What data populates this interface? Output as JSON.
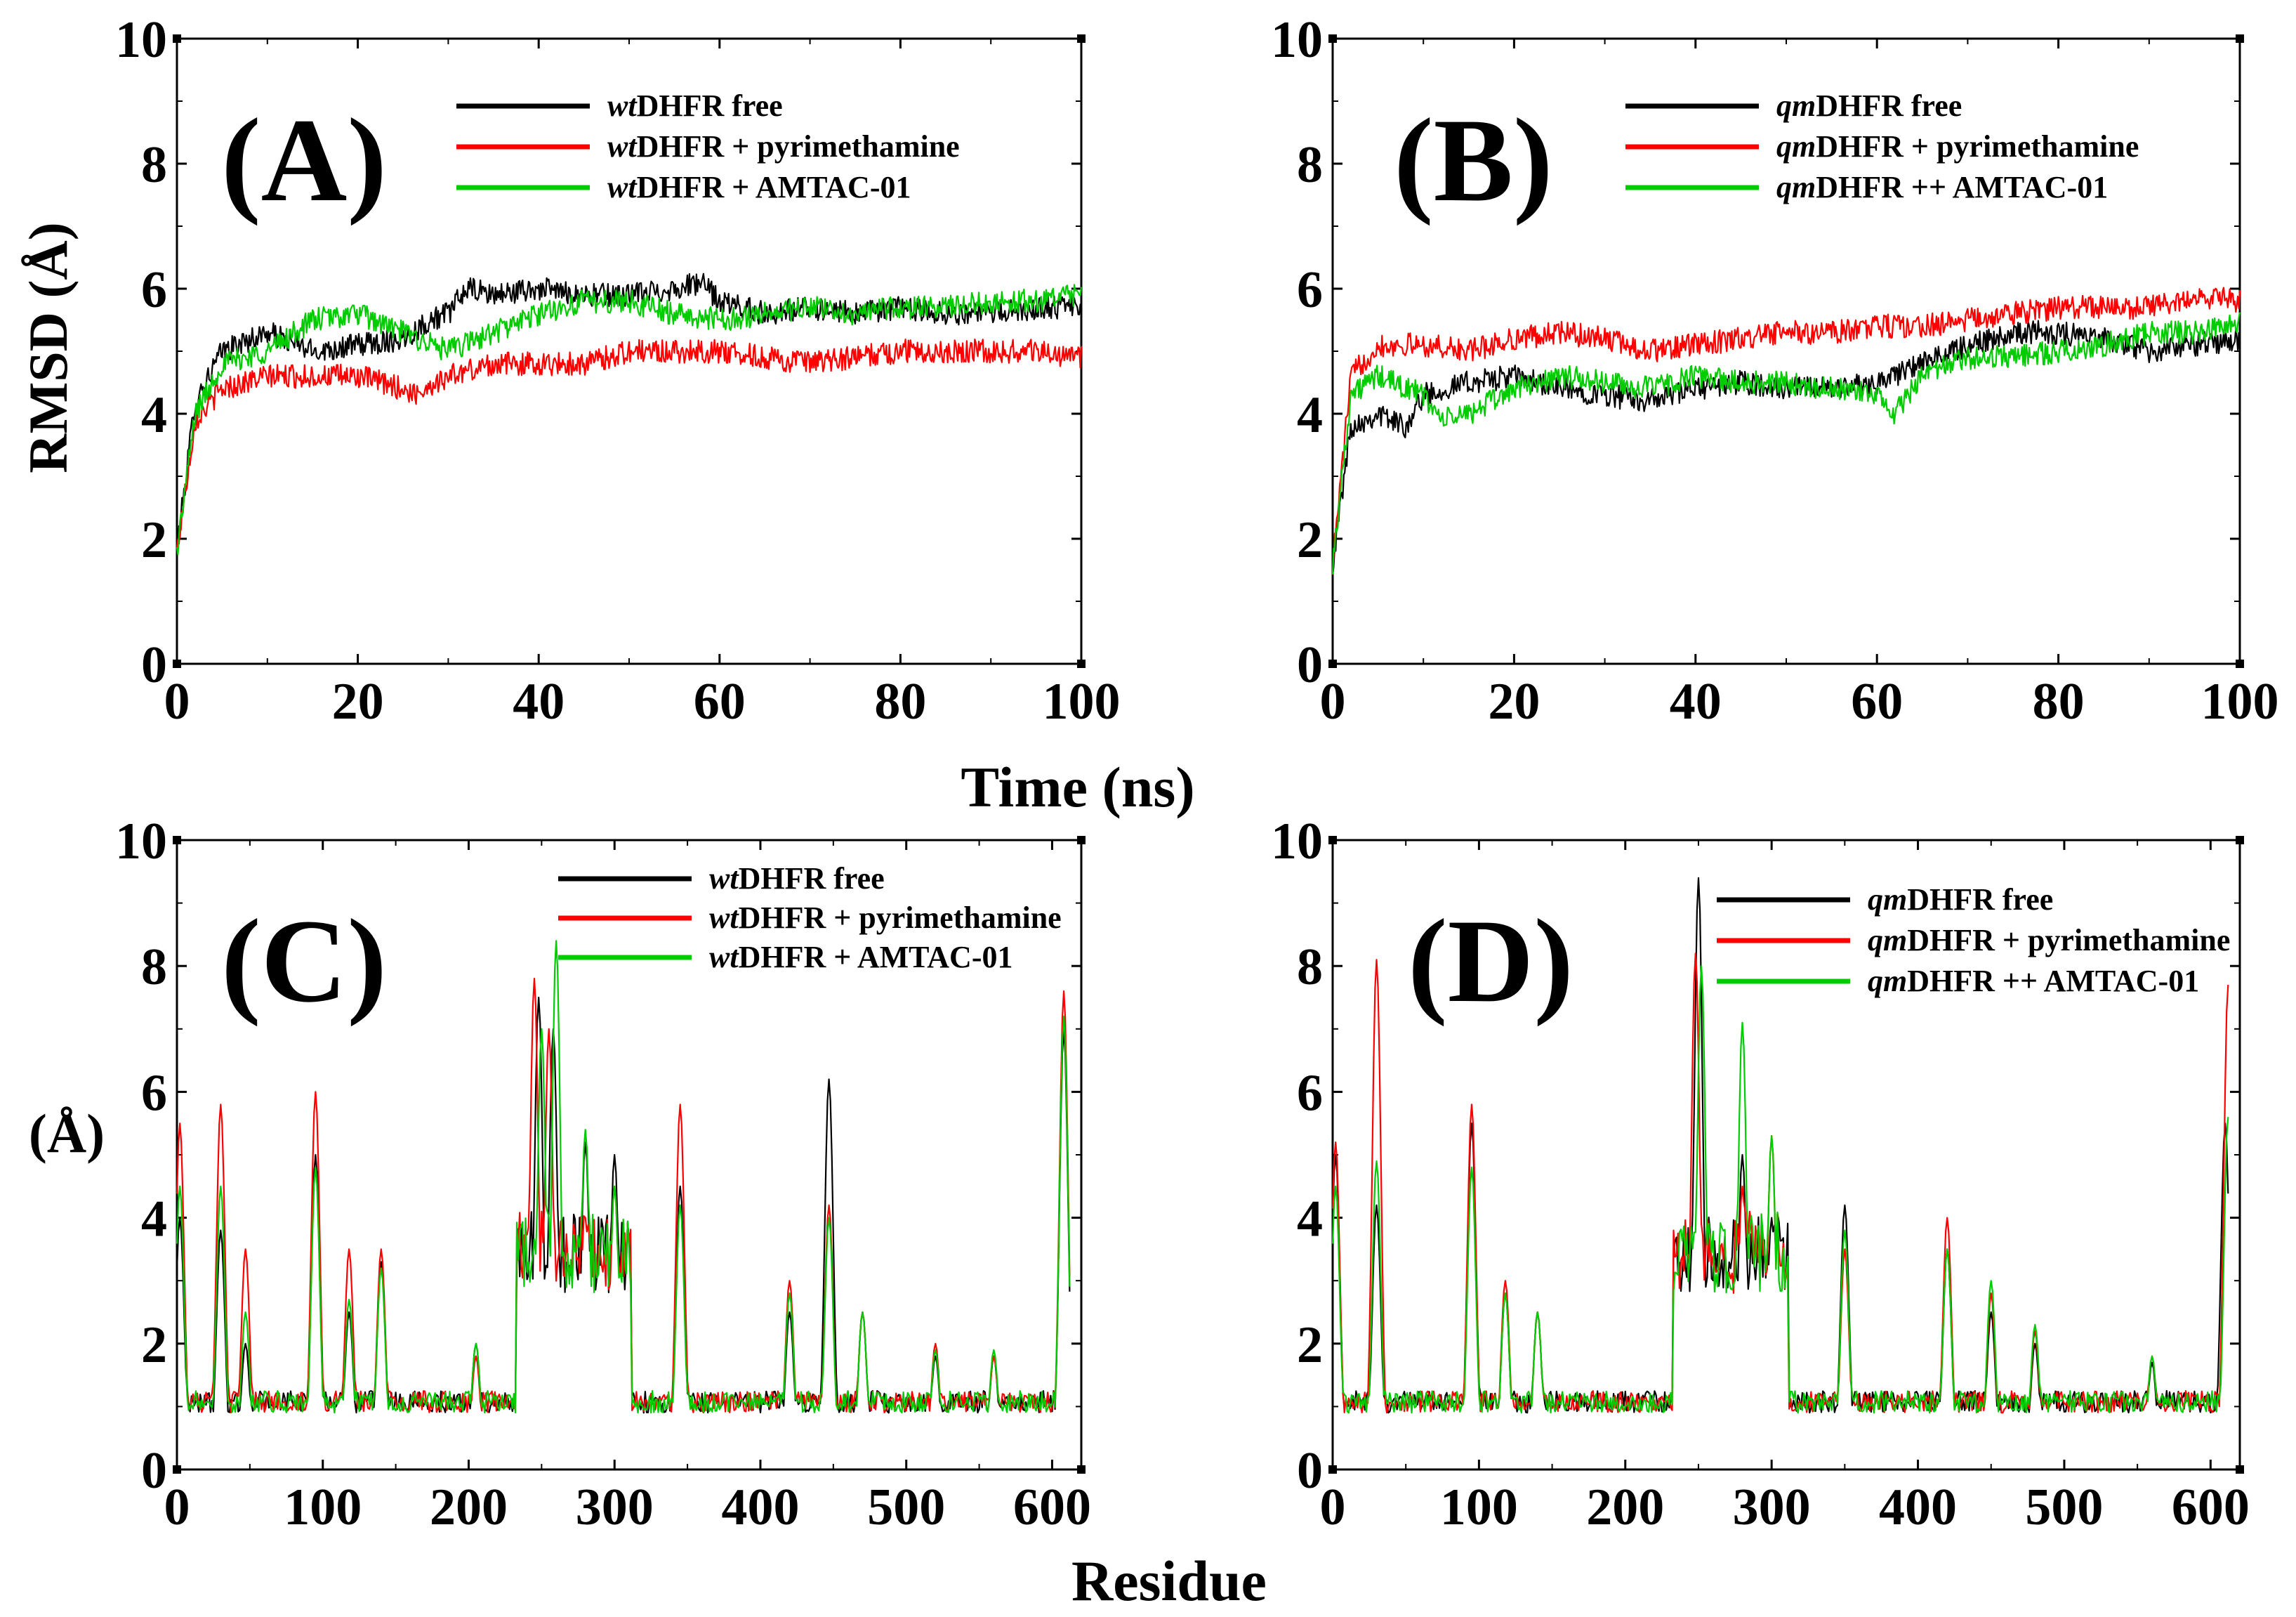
{
  "colors": {
    "free": "#000000",
    "pyrimethamine": "#ff0000",
    "amtac": "#00cc00"
  },
  "common": {
    "time_label": "Time (ns)",
    "residue_label": "Residue"
  },
  "chart_data": [
    {
      "panel": "(A)",
      "type": "line",
      "xlim": [
        0,
        100
      ],
      "ylim": [
        0,
        10
      ],
      "ylabel": "RMSD (Å)",
      "xlabel": "Time (ns)",
      "xticks": [
        "0",
        "20",
        "40",
        "60",
        "80",
        "100"
      ],
      "yticks": [
        "0",
        "2",
        "4",
        "6",
        "8",
        "10"
      ],
      "legend": [
        {
          "italic": "wt",
          "rest": "DHFR free",
          "key": "free"
        },
        {
          "italic": "wt",
          "rest": "DHFR + pyrimethamine",
          "key": "pyrimethamine"
        },
        {
          "italic": "wt",
          "rest": "DHFR + AMTAC-01",
          "key": "amtac"
        }
      ],
      "series": [
        {
          "key": "free",
          "x": [
            0,
            2,
            5,
            10,
            15,
            20,
            25,
            28,
            30,
            32,
            35,
            40,
            45,
            50,
            55,
            58,
            60,
            65,
            70,
            75,
            80,
            85,
            90,
            95,
            100
          ],
          "y": [
            1.8,
            4.2,
            5.0,
            5.3,
            5.0,
            5.1,
            5.2,
            5.5,
            5.6,
            6.0,
            5.9,
            6.0,
            5.9,
            5.9,
            6.0,
            6.1,
            5.8,
            5.6,
            5.7,
            5.6,
            5.7,
            5.6,
            5.6,
            5.7,
            5.7
          ]
        },
        {
          "key": "pyrimethamine",
          "x": [
            0,
            2,
            5,
            10,
            15,
            20,
            25,
            26,
            30,
            35,
            40,
            45,
            50,
            55,
            60,
            65,
            70,
            75,
            80,
            85,
            90,
            95,
            100
          ],
          "y": [
            1.8,
            3.9,
            4.4,
            4.6,
            4.6,
            4.6,
            4.4,
            4.3,
            4.6,
            4.8,
            4.8,
            4.8,
            5.0,
            5.0,
            5.0,
            4.9,
            4.8,
            4.9,
            5.0,
            5.0,
            5.0,
            5.0,
            4.9
          ]
        },
        {
          "key": "amtac",
          "x": [
            0,
            2,
            5,
            10,
            15,
            20,
            25,
            30,
            35,
            40,
            45,
            50,
            55,
            60,
            65,
            70,
            75,
            80,
            85,
            90,
            95,
            100
          ],
          "y": [
            1.8,
            4.0,
            4.8,
            5.0,
            5.5,
            5.6,
            5.3,
            5.0,
            5.3,
            5.6,
            5.8,
            5.8,
            5.6,
            5.5,
            5.6,
            5.7,
            5.6,
            5.7,
            5.7,
            5.8,
            5.8,
            5.9
          ]
        }
      ]
    },
    {
      "panel": "(B)",
      "type": "line",
      "xlim": [
        0,
        100
      ],
      "ylim": [
        0,
        10
      ],
      "ylabel": "",
      "xlabel": "Time (ns)",
      "xticks": [
        "0",
        "20",
        "40",
        "60",
        "80",
        "100"
      ],
      "yticks": [
        "0",
        "2",
        "4",
        "6",
        "8",
        "10"
      ],
      "legend": [
        {
          "italic": "qm",
          "rest": "DHFR free",
          "key": "free"
        },
        {
          "italic": "qm",
          "rest": "DHFR + pyrimethamine",
          "key": "pyrimethamine"
        },
        {
          "italic": "qm",
          "rest": "DHFR ++ AMTAC-01",
          "key": "amtac"
        }
      ],
      "series": [
        {
          "key": "free",
          "x": [
            0,
            2,
            5,
            8,
            10,
            15,
            20,
            25,
            30,
            35,
            40,
            45,
            50,
            55,
            60,
            65,
            70,
            75,
            80,
            85,
            90,
            95,
            100
          ],
          "y": [
            1.6,
            3.8,
            4.0,
            3.8,
            4.3,
            4.5,
            4.6,
            4.4,
            4.3,
            4.2,
            4.4,
            4.5,
            4.4,
            4.4,
            4.5,
            4.8,
            5.1,
            5.3,
            5.3,
            5.2,
            5.0,
            5.1,
            5.2
          ]
        },
        {
          "key": "pyrimethamine",
          "x": [
            0,
            2,
            5,
            10,
            15,
            20,
            25,
            30,
            35,
            40,
            45,
            50,
            55,
            60,
            65,
            70,
            75,
            80,
            85,
            90,
            95,
            100
          ],
          "y": [
            1.6,
            4.6,
            5.1,
            5.1,
            5.0,
            5.2,
            5.3,
            5.2,
            5.0,
            5.1,
            5.2,
            5.3,
            5.3,
            5.4,
            5.4,
            5.5,
            5.6,
            5.7,
            5.7,
            5.7,
            5.9,
            5.8
          ]
        },
        {
          "key": "amtac",
          "x": [
            0,
            2,
            5,
            10,
            12,
            15,
            20,
            25,
            30,
            35,
            40,
            45,
            50,
            55,
            60,
            62,
            65,
            70,
            75,
            80,
            85,
            90,
            95,
            100
          ],
          "y": [
            1.6,
            4.3,
            4.6,
            4.3,
            3.9,
            4.0,
            4.4,
            4.6,
            4.5,
            4.4,
            4.6,
            4.5,
            4.5,
            4.4,
            4.3,
            4.0,
            4.6,
            4.9,
            4.9,
            5.0,
            5.1,
            5.3,
            5.3,
            5.5
          ]
        }
      ]
    },
    {
      "panel": "(C)",
      "type": "line",
      "xlim": [
        0,
        620
      ],
      "ylim": [
        0,
        10
      ],
      "ylabel": "(Å)",
      "xlabel": "Residue",
      "xticks": [
        "0",
        "100",
        "200",
        "300",
        "400",
        "500",
        "600"
      ],
      "yticks": [
        "0",
        "2",
        "4",
        "6",
        "8",
        "10"
      ],
      "legend": [
        {
          "italic": "wt",
          "rest": "DHFR free",
          "key": "free"
        },
        {
          "italic": "wt",
          "rest": "DHFR + pyrimethamine",
          "key": "pyrimethamine"
        },
        {
          "italic": "wt",
          "rest": "DHFR + AMTAC-01",
          "key": "amtac"
        }
      ],
      "peaks": {
        "free": [
          [
            2,
            4.0
          ],
          [
            30,
            3.8
          ],
          [
            47,
            2.0
          ],
          [
            95,
            5.0
          ],
          [
            118,
            2.5
          ],
          [
            140,
            3.3
          ],
          [
            205,
            2.0
          ],
          [
            248,
            7.5
          ],
          [
            258,
            7.0
          ],
          [
            280,
            5.2
          ],
          [
            300,
            5.0
          ],
          [
            345,
            4.5
          ],
          [
            420,
            2.5
          ],
          [
            447,
            6.2
          ],
          [
            470,
            2.5
          ],
          [
            520,
            1.8
          ],
          [
            560,
            1.8
          ],
          [
            608,
            7.0
          ]
        ],
        "pyrimethamine": [
          [
            2,
            5.5
          ],
          [
            30,
            5.8
          ],
          [
            47,
            3.5
          ],
          [
            95,
            6.0
          ],
          [
            118,
            3.5
          ],
          [
            140,
            3.5
          ],
          [
            205,
            1.8
          ],
          [
            245,
            7.8
          ],
          [
            255,
            7.0
          ],
          [
            280,
            4.0
          ],
          [
            300,
            4.5
          ],
          [
            345,
            5.8
          ],
          [
            420,
            3.0
          ],
          [
            447,
            4.2
          ],
          [
            470,
            2.5
          ],
          [
            520,
            2.0
          ],
          [
            560,
            1.8
          ],
          [
            608,
            7.6
          ]
        ],
        "amtac": [
          [
            2,
            4.5
          ],
          [
            30,
            4.5
          ],
          [
            47,
            2.5
          ],
          [
            95,
            4.8
          ],
          [
            118,
            2.7
          ],
          [
            140,
            3.2
          ],
          [
            205,
            2.0
          ],
          [
            250,
            7.0
          ],
          [
            260,
            8.4
          ],
          [
            280,
            5.4
          ],
          [
            300,
            4.5
          ],
          [
            345,
            4.2
          ],
          [
            420,
            2.8
          ],
          [
            447,
            4.0
          ],
          [
            470,
            2.5
          ],
          [
            520,
            1.9
          ],
          [
            560,
            1.9
          ],
          [
            608,
            7.2
          ]
        ]
      }
    },
    {
      "panel": "(D)",
      "type": "line",
      "xlim": [
        0,
        620
      ],
      "ylim": [
        0,
        10
      ],
      "ylabel": "",
      "xlabel": "Residue",
      "xticks": [
        "0",
        "100",
        "200",
        "300",
        "400",
        "500",
        "600"
      ],
      "yticks": [
        "0",
        "2",
        "4",
        "6",
        "8",
        "10"
      ],
      "legend": [
        {
          "italic": "qm",
          "rest": "DHFR free",
          "key": "free"
        },
        {
          "italic": "qm",
          "rest": "DHFR + pyrimethamine",
          "key": "pyrimethamine"
        },
        {
          "italic": "qm",
          "rest": "DHFR ++ AMTAC-01",
          "key": "amtac"
        }
      ],
      "peaks": {
        "free": [
          [
            2,
            5.0
          ],
          [
            30,
            4.2
          ],
          [
            95,
            5.5
          ],
          [
            118,
            2.8
          ],
          [
            140,
            2.5
          ],
          [
            250,
            9.4
          ],
          [
            280,
            5.0
          ],
          [
            300,
            4.0
          ],
          [
            350,
            4.2
          ],
          [
            420,
            3.5
          ],
          [
            450,
            2.5
          ],
          [
            480,
            2.0
          ],
          [
            560,
            1.7
          ],
          [
            610,
            5.5
          ]
        ],
        "pyrimethamine": [
          [
            2,
            5.2
          ],
          [
            30,
            8.1
          ],
          [
            95,
            5.8
          ],
          [
            118,
            3.0
          ],
          [
            140,
            2.5
          ],
          [
            248,
            8.2
          ],
          [
            280,
            4.5
          ],
          [
            300,
            5.3
          ],
          [
            350,
            3.5
          ],
          [
            420,
            4.0
          ],
          [
            450,
            2.8
          ],
          [
            480,
            2.2
          ],
          [
            560,
            1.8
          ],
          [
            612,
            7.7
          ]
        ],
        "amtac": [
          [
            2,
            4.5
          ],
          [
            30,
            4.9
          ],
          [
            95,
            4.8
          ],
          [
            118,
            2.8
          ],
          [
            140,
            2.5
          ],
          [
            252,
            8.0
          ],
          [
            280,
            7.1
          ],
          [
            300,
            5.3
          ],
          [
            350,
            3.8
          ],
          [
            420,
            3.5
          ],
          [
            450,
            3.0
          ],
          [
            480,
            2.3
          ],
          [
            560,
            1.8
          ],
          [
            612,
            5.6
          ]
        ]
      }
    }
  ]
}
